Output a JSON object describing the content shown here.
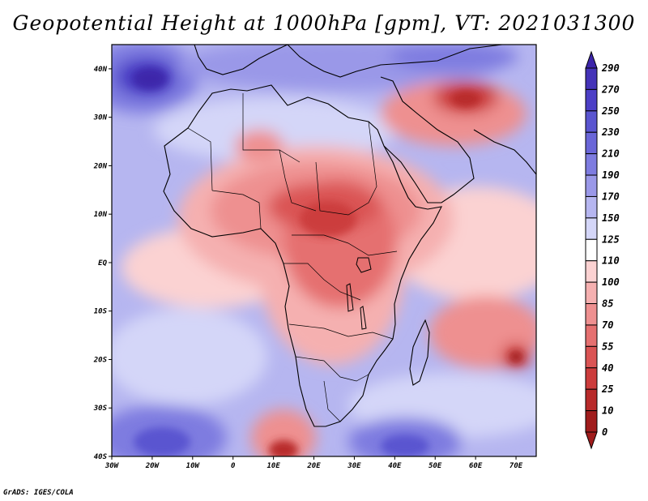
{
  "title": "Geopotential Height at 1000hPa [gpm], VT: 2021031300",
  "credit": "GrADS: IGES/COLA",
  "map": {
    "lon_range": [
      -30,
      75
    ],
    "lat_range": [
      -40,
      45
    ],
    "lat_ticks": [
      {
        "value": 40,
        "label": "40N"
      },
      {
        "value": 30,
        "label": "30N"
      },
      {
        "value": 20,
        "label": "20N"
      },
      {
        "value": 10,
        "label": "10N"
      },
      {
        "value": 0,
        "label": "EQ"
      },
      {
        "value": -10,
        "label": "10S"
      },
      {
        "value": -20,
        "label": "20S"
      },
      {
        "value": -30,
        "label": "30S"
      },
      {
        "value": -40,
        "label": "40S"
      }
    ],
    "lon_ticks": [
      {
        "value": -30,
        "label": "30W"
      },
      {
        "value": -20,
        "label": "20W"
      },
      {
        "value": -10,
        "label": "10W"
      },
      {
        "value": 0,
        "label": "0"
      },
      {
        "value": 10,
        "label": "10E"
      },
      {
        "value": 20,
        "label": "20E"
      },
      {
        "value": 30,
        "label": "30E"
      },
      {
        "value": 40,
        "label": "40E"
      },
      {
        "value": 50,
        "label": "50E"
      },
      {
        "value": 60,
        "label": "60E"
      },
      {
        "value": 70,
        "label": "70E"
      }
    ]
  },
  "colorbar": {
    "levels": [
      {
        "label": "290",
        "color": "#3c25aa"
      },
      {
        "label": "270",
        "color": "#4433b8"
      },
      {
        "label": "250",
        "color": "#4c3fc6"
      },
      {
        "label": "230",
        "color": "#5a55d0"
      },
      {
        "label": "210",
        "color": "#6a66d8"
      },
      {
        "label": "190",
        "color": "#7e7ce0"
      },
      {
        "label": "170",
        "color": "#9a98e8"
      },
      {
        "label": "150",
        "color": "#b6b6f0"
      },
      {
        "label": "125",
        "color": "#d4d6f8"
      },
      {
        "label": "110",
        "color": "#ffffff"
      },
      {
        "label": "100",
        "color": "#fbd2d2"
      },
      {
        "label": "85",
        "color": "#f5b0b0"
      },
      {
        "label": "70",
        "color": "#ee9090"
      },
      {
        "label": "55",
        "color": "#e57070"
      },
      {
        "label": "40",
        "color": "#da5454"
      },
      {
        "label": "25",
        "color": "#cc3c3c"
      },
      {
        "label": "10",
        "color": "#b82a2a"
      },
      {
        "label": "0",
        "color": "#a01c1c"
      }
    ]
  }
}
